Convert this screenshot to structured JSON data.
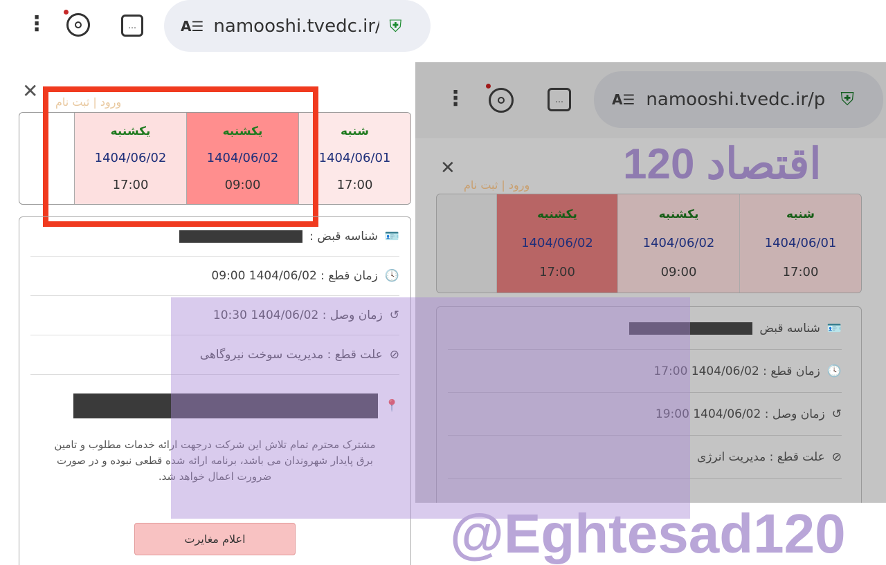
{
  "left": {
    "url": "namooshi.tvedc.ir/p",
    "schedule": [
      {
        "day": "یکشنبه",
        "date": "1404/06/02",
        "time": "17:00",
        "color": "#fde0e0"
      },
      {
        "day": "یکشنبه",
        "date": "1404/06/02",
        "time": "09:00",
        "color": "#ff8e8e"
      },
      {
        "day": "شنبه",
        "date": "1404/06/01",
        "time": "17:00",
        "color": "#fde8e8"
      }
    ],
    "bill_id_label": "شناسه قبض :",
    "outage_time": "زمان قطع : 1404/06/02 09:00",
    "restore_time": "زمان وصل : 1404/06/02 10:30",
    "reason": "علت قطع : مدیریت سوخت نیروگاهی",
    "notice": "مشترک محترم تمام تلاش این شرکت درجهت ارائه خدمات مطلوب و تامین برق پایدار شهروندان می باشد، برنامه ارائه شده قطعی نبوده و در صورت ضرورت اعمال خواهد شد.",
    "report_button": "اعلام مغایرت",
    "login_link": "ورود | ثبت نام"
  },
  "right": {
    "url": "namooshi.tvedc.ir/p",
    "schedule": [
      {
        "day": "یکشنبه",
        "date": "1404/06/02",
        "time": "17:00",
        "color": "#b86565"
      },
      {
        "day": "یکشنبه",
        "date": "1404/06/02",
        "time": "09:00",
        "color": "#c9b2b2"
      },
      {
        "day": "شنبه",
        "date": "1404/06/01",
        "time": "17:00",
        "color": "#c9b2b2"
      }
    ],
    "bill_id_label": "شناسه قبض",
    "outage_time": "زمان قطع : 1404/06/02 17:00",
    "restore_time": "زمان وصل : 1404/06/02 19:00",
    "reason": "علت قطع : مدیریت انرژی",
    "login_link": "ورود | ثبت نام"
  },
  "watermark": {
    "line1": "اقتصاد 120",
    "line2": "@Eghtesad120"
  },
  "highlight_color": "#f03a1f"
}
